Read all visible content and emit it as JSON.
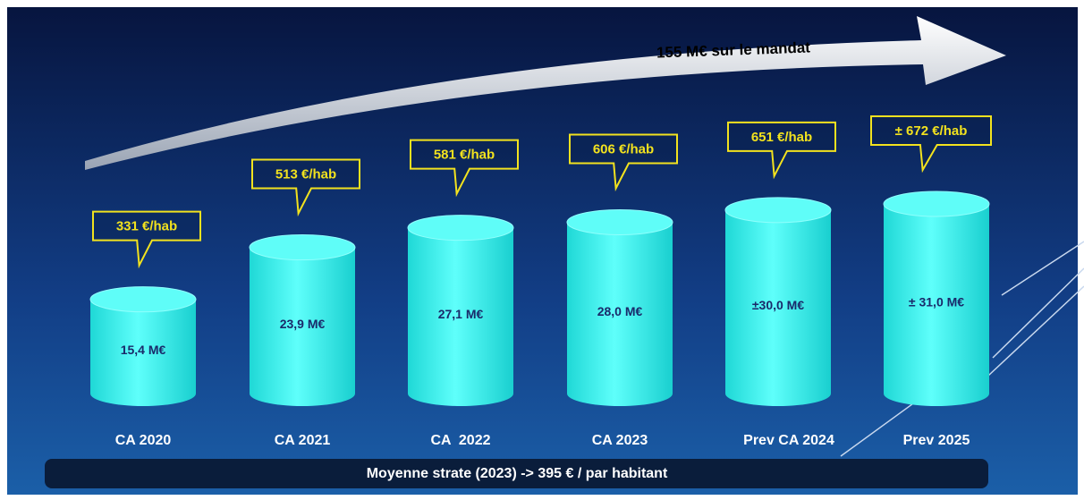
{
  "chart_data": {
    "type": "bar",
    "annotation": "155 M€ sur le mandat",
    "categories": [
      "CA 2020",
      "CA 2021",
      "CA  2022",
      "CA 2023",
      "Prev CA 2024",
      "Prev 2025"
    ],
    "values": [
      15.4,
      23.9,
      27.1,
      28.0,
      30.0,
      31.0
    ],
    "value_labels": [
      "15,4 M€",
      "23,9 M€",
      "27,1 M€",
      "28,0 M€",
      "±30,0 M€",
      "± 31,0 M€"
    ],
    "color": "#3ff2ee",
    "per_habitant": {
      "values": [
        331,
        513,
        581,
        606,
        651,
        672
      ],
      "value_labels": [
        "331 €/hab",
        "513 €/hab",
        "581 €/hab",
        "606 €/hab",
        "651 €/hab",
        "± 672 €/hab"
      ],
      "color": "#f2e21e"
    },
    "footer": "Moyenne strate (2023) -> 395 € / par habitant"
  }
}
